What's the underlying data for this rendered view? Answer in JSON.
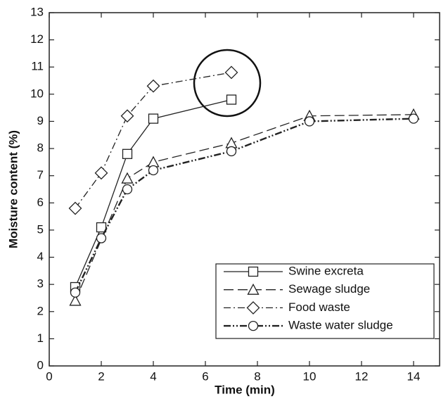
{
  "chart_data": {
    "type": "line",
    "xlabel": "Time (min)",
    "ylabel": "Moisture content (%)",
    "xlim": [
      0,
      15
    ],
    "xticks": [
      0,
      2,
      4,
      6,
      8,
      10,
      12,
      14
    ],
    "ylim": [
      0,
      13
    ],
    "yticks": [
      0,
      1,
      2,
      3,
      4,
      5,
      6,
      7,
      8,
      9,
      10,
      11,
      12,
      13
    ],
    "legend": "lower right",
    "series": [
      {
        "name": "Swine excreta",
        "color": "#222222",
        "marker": "square",
        "dash": "solid",
        "x": [
          1,
          2,
          3,
          4,
          7
        ],
        "values": [
          2.9,
          5.1,
          7.8,
          9.1,
          9.8
        ]
      },
      {
        "name": "Sewage sludge",
        "color": "#222222",
        "marker": "triangle",
        "dash": "dashed",
        "x": [
          1,
          3,
          4,
          7,
          10,
          14
        ],
        "values": [
          2.4,
          6.9,
          7.5,
          8.2,
          9.2,
          9.25
        ]
      },
      {
        "name": "Food waste",
        "color": "#222222",
        "marker": "diamond",
        "dash": "dashdot",
        "x": [
          1,
          2,
          3,
          4,
          7
        ],
        "values": [
          5.8,
          7.1,
          9.2,
          10.3,
          10.8
        ]
      },
      {
        "name": "Waste water sludge",
        "color": "#222222",
        "marker": "circle",
        "dash": "dashdotdot",
        "x": [
          1,
          2,
          3,
          4,
          7,
          10,
          14
        ],
        "values": [
          2.7,
          4.7,
          6.5,
          7.2,
          7.9,
          9.0,
          9.1
        ]
      }
    ]
  }
}
